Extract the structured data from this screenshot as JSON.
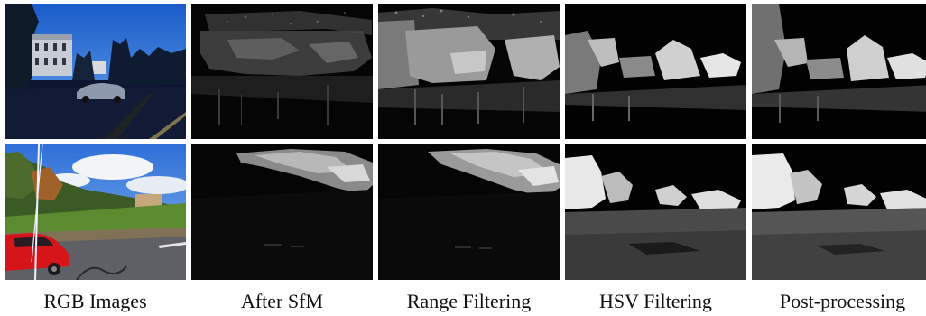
{
  "columns": [
    {
      "caption": "RGB Images"
    },
    {
      "caption": "After SfM"
    },
    {
      "caption": "Range Filtering"
    },
    {
      "caption": "HSV Filtering"
    },
    {
      "caption": "Post-processing"
    }
  ],
  "rows": [
    {
      "scene": "street-house-car-dusk"
    },
    {
      "scene": "hillside-red-car-sunny"
    }
  ]
}
